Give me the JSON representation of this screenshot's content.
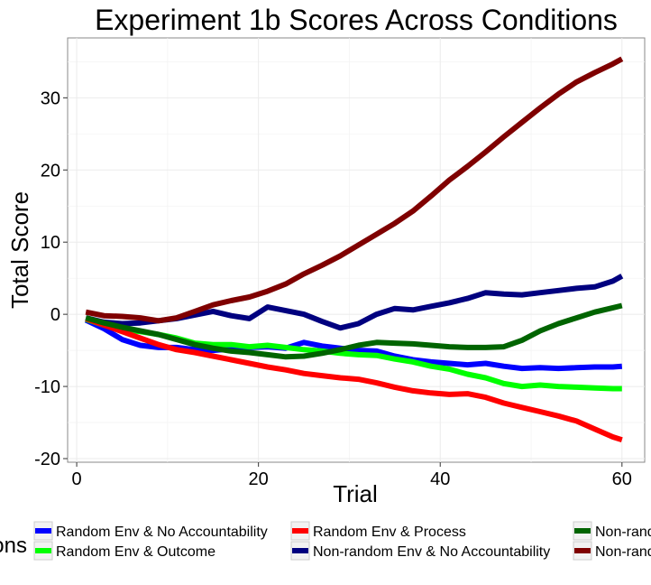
{
  "chart_data": {
    "type": "line",
    "title": "Experiment 1b Scores Across Conditions",
    "xlabel": "Trial",
    "ylabel": "Total Score",
    "xlim": [
      -1,
      62.5
    ],
    "ylim": [
      -20.5,
      38.3
    ],
    "xticks": [
      0,
      20,
      40,
      60
    ],
    "yticks": [
      -20,
      -10,
      0,
      10,
      20,
      30
    ],
    "grid": true,
    "legend": {
      "title": "Conditions",
      "position": "bottom"
    },
    "series": [
      {
        "name": "Random Env & No Accountability",
        "color": "#0000ff",
        "x": [
          1,
          3,
          5,
          7,
          9,
          11,
          13,
          15,
          17,
          19,
          21,
          23,
          25,
          27,
          29,
          31,
          33,
          35,
          37,
          39,
          41,
          43,
          45,
          47,
          49,
          51,
          53,
          55,
          57,
          59,
          60
        ],
        "y": [
          -0.8,
          -2.0,
          -3.5,
          -4.3,
          -4.6,
          -4.6,
          -4.9,
          -5.0,
          -4.8,
          -4.6,
          -4.5,
          -4.7,
          -3.9,
          -4.4,
          -4.7,
          -5.0,
          -5.1,
          -5.8,
          -6.3,
          -6.6,
          -6.8,
          -7.0,
          -6.8,
          -7.2,
          -7.5,
          -7.4,
          -7.5,
          -7.4,
          -7.3,
          -7.3,
          -7.2
        ]
      },
      {
        "name": "Random Env & Outcome",
        "color": "#00ff00",
        "x": [
          1,
          3,
          5,
          7,
          9,
          11,
          13,
          15,
          17,
          19,
          21,
          23,
          25,
          27,
          29,
          31,
          33,
          35,
          37,
          39,
          41,
          43,
          45,
          47,
          49,
          51,
          53,
          55,
          57,
          59,
          60
        ],
        "y": [
          -0.7,
          -1.5,
          -2.2,
          -2.4,
          -2.8,
          -3.3,
          -4.0,
          -4.2,
          -4.2,
          -4.5,
          -4.3,
          -4.6,
          -4.9,
          -5.1,
          -5.4,
          -5.6,
          -5.7,
          -6.2,
          -6.6,
          -7.2,
          -7.6,
          -8.3,
          -8.8,
          -9.6,
          -10.0,
          -9.8,
          -10.0,
          -10.1,
          -10.2,
          -10.3,
          -10.3
        ]
      },
      {
        "name": "Random Env & Process",
        "color": "#ff0000",
        "x": [
          1,
          3,
          5,
          7,
          9,
          11,
          13,
          15,
          17,
          19,
          21,
          23,
          25,
          27,
          29,
          31,
          33,
          35,
          37,
          39,
          41,
          43,
          45,
          47,
          49,
          51,
          53,
          55,
          57,
          59,
          60
        ],
        "y": [
          -0.6,
          -1.5,
          -2.4,
          -3.3,
          -4.2,
          -4.9,
          -5.3,
          -5.8,
          -6.3,
          -6.8,
          -7.3,
          -7.7,
          -8.2,
          -8.5,
          -8.8,
          -9.0,
          -9.5,
          -10.1,
          -10.6,
          -10.9,
          -11.1,
          -11.0,
          -11.5,
          -12.3,
          -12.9,
          -13.5,
          -14.1,
          -14.8,
          -15.9,
          -17.0,
          -17.4
        ]
      },
      {
        "name": "Non-random Env & No Accountability",
        "color": "#00007f",
        "x": [
          1,
          3,
          5,
          7,
          9,
          11,
          13,
          15,
          17,
          19,
          21,
          23,
          25,
          27,
          29,
          31,
          33,
          35,
          37,
          39,
          41,
          43,
          45,
          47,
          49,
          51,
          53,
          55,
          57,
          59,
          60
        ],
        "y": [
          -0.5,
          -1.1,
          -1.3,
          -1.2,
          -0.9,
          -0.6,
          -0.1,
          0.4,
          -0.2,
          -0.6,
          1.0,
          0.5,
          0.0,
          -1.0,
          -1.9,
          -1.3,
          0.0,
          0.8,
          0.6,
          1.1,
          1.6,
          2.2,
          3.0,
          2.8,
          2.7,
          3.0,
          3.3,
          3.6,
          3.8,
          4.6,
          5.3
        ]
      },
      {
        "name": "Non-random Env & Outcome",
        "color": "#006400",
        "x": [
          1,
          3,
          5,
          7,
          9,
          11,
          13,
          15,
          17,
          19,
          21,
          23,
          25,
          27,
          29,
          31,
          33,
          35,
          37,
          39,
          41,
          43,
          45,
          47,
          49,
          51,
          53,
          55,
          57,
          59,
          60
        ],
        "y": [
          -0.5,
          -1.2,
          -1.8,
          -2.3,
          -2.8,
          -3.5,
          -4.2,
          -4.7,
          -5.1,
          -5.3,
          -5.6,
          -5.9,
          -5.8,
          -5.4,
          -4.9,
          -4.3,
          -3.9,
          -4.0,
          -4.1,
          -4.3,
          -4.5,
          -4.6,
          -4.6,
          -4.5,
          -3.6,
          -2.3,
          -1.3,
          -0.5,
          0.3,
          0.9,
          1.2
        ]
      },
      {
        "name": "Non-random Env & Process",
        "color": "#7f0000",
        "x": [
          1,
          3,
          5,
          7,
          9,
          11,
          13,
          15,
          17,
          19,
          21,
          23,
          25,
          27,
          29,
          31,
          33,
          35,
          37,
          39,
          41,
          43,
          45,
          47,
          49,
          51,
          53,
          55,
          57,
          59,
          60
        ],
        "y": [
          0.3,
          -0.2,
          -0.3,
          -0.5,
          -0.9,
          -0.5,
          0.4,
          1.3,
          1.9,
          2.4,
          3.2,
          4.2,
          5.6,
          6.8,
          8.1,
          9.6,
          11.1,
          12.6,
          14.3,
          16.4,
          18.6,
          20.5,
          22.5,
          24.6,
          26.6,
          28.6,
          30.5,
          32.2,
          33.5,
          34.7,
          35.4
        ]
      }
    ]
  }
}
